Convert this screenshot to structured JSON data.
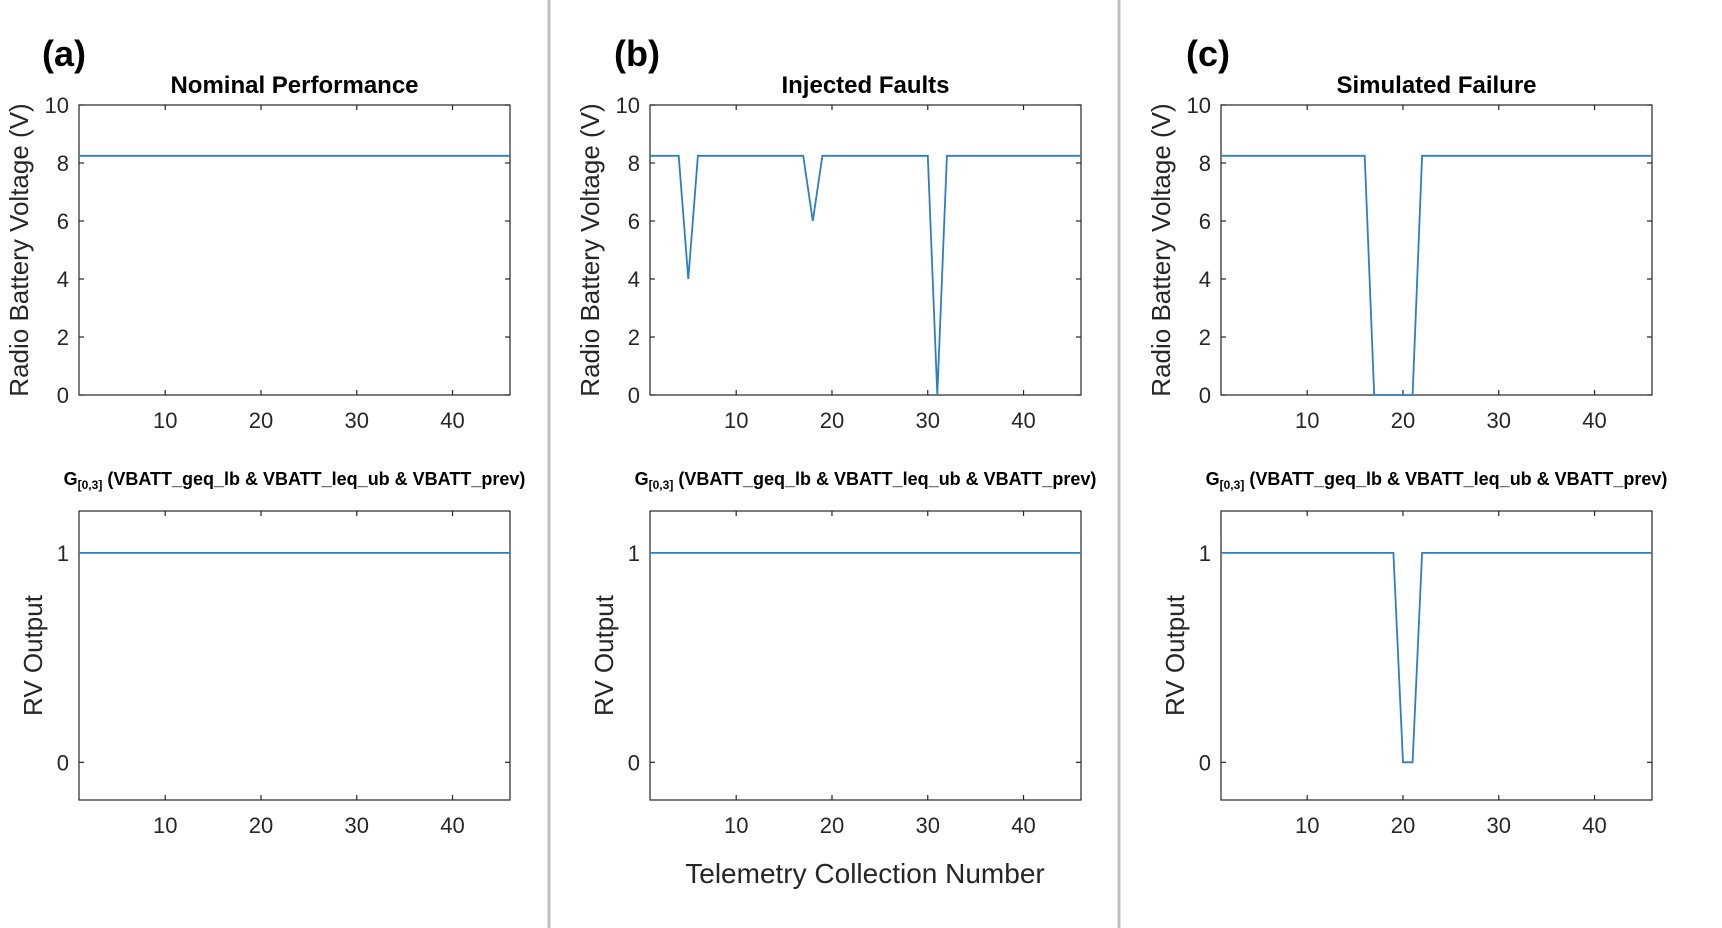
{
  "figure": {
    "xlabel": "Telemetry Collection Number",
    "series_color": "#0072BD"
  },
  "chart_data": [
    {
      "type": "line",
      "panel_letter": "(a)",
      "title": "Nominal Performance",
      "xlabel": "",
      "ylabel": "Radio Battery Voltage (V)",
      "xlim": [
        1,
        46
      ],
      "ylim": [
        0,
        10
      ],
      "xticks": [
        10,
        20,
        30,
        40
      ],
      "yticks": [
        0,
        2,
        4,
        6,
        8,
        10
      ],
      "grid": false,
      "x": [
        1,
        46
      ],
      "y": [
        8.25,
        8.25
      ]
    },
    {
      "type": "line",
      "panel_letter": "(b)",
      "title": "Injected Faults",
      "xlabel": "",
      "ylabel": "Radio Battery Voltage (V)",
      "xlim": [
        1,
        46
      ],
      "ylim": [
        0,
        10
      ],
      "xticks": [
        10,
        20,
        30,
        40
      ],
      "yticks": [
        0,
        2,
        4,
        6,
        8,
        10
      ],
      "grid": false,
      "x": [
        1,
        4,
        5,
        6,
        17,
        18,
        19,
        30,
        31,
        32,
        46
      ],
      "y": [
        8.25,
        8.25,
        4.0,
        8.25,
        8.25,
        6.0,
        8.25,
        8.25,
        0.0,
        8.25,
        8.25
      ]
    },
    {
      "type": "line",
      "panel_letter": "(c)",
      "title": "Simulated Failure",
      "xlabel": "",
      "ylabel": "Radio Battery Voltage (V)",
      "xlim": [
        1,
        46
      ],
      "ylim": [
        0,
        10
      ],
      "xticks": [
        10,
        20,
        30,
        40
      ],
      "yticks": [
        0,
        2,
        4,
        6,
        8,
        10
      ],
      "grid": false,
      "x": [
        1,
        16,
        17,
        21,
        22,
        46
      ],
      "y": [
        8.25,
        8.25,
        0.0,
        0.0,
        8.25,
        8.25
      ]
    },
    {
      "type": "line",
      "spec_prefix": "G",
      "spec_subscript": "[0,3]",
      "spec_body": " (VBATT_geq_lb & VBATT_leq_ub & VBATT_prev)",
      "xlabel": "",
      "ylabel": "RV Output",
      "xlim": [
        1,
        46
      ],
      "ylim": [
        -0.18,
        1.2
      ],
      "xticks": [
        10,
        20,
        30,
        40
      ],
      "yticks": [
        0,
        1
      ],
      "grid": false,
      "x": [
        1,
        46
      ],
      "y": [
        1,
        1
      ]
    },
    {
      "type": "line",
      "spec_prefix": "G",
      "spec_subscript": "[0,3]",
      "spec_body": " (VBATT_geq_lb & VBATT_leq_ub & VBATT_prev)",
      "xlabel": "Telemetry Collection Number",
      "ylabel": "RV Output",
      "xlim": [
        1,
        46
      ],
      "ylim": [
        -0.18,
        1.2
      ],
      "xticks": [
        10,
        20,
        30,
        40
      ],
      "yticks": [
        0,
        1
      ],
      "grid": false,
      "x": [
        1,
        46
      ],
      "y": [
        1,
        1
      ]
    },
    {
      "type": "line",
      "spec_prefix": "G",
      "spec_subscript": "[0,3]",
      "spec_body": " (VBATT_geq_lb & VBATT_leq_ub & VBATT_prev)",
      "xlabel": "",
      "ylabel": "RV Output",
      "xlim": [
        1,
        46
      ],
      "ylim": [
        -0.18,
        1.2
      ],
      "xticks": [
        10,
        20,
        30,
        40
      ],
      "yticks": [
        0,
        1
      ],
      "grid": false,
      "x": [
        1,
        19,
        20,
        21,
        22,
        46
      ],
      "y": [
        1,
        1,
        0,
        0,
        1,
        1
      ]
    }
  ]
}
